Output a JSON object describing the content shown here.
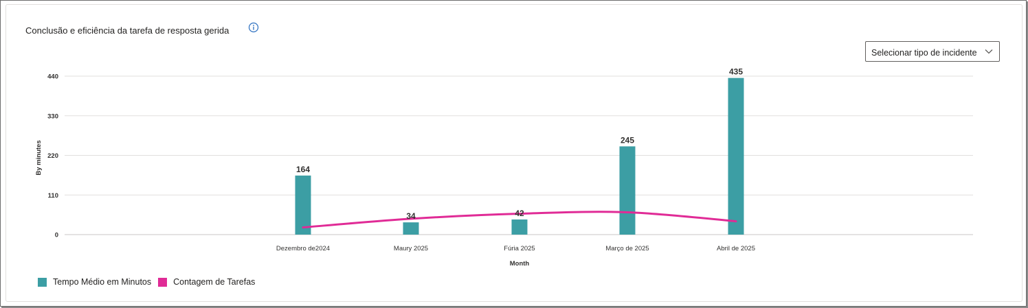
{
  "card": {
    "title": "Conclusão e eficiência da tarefa de resposta gerida",
    "info_icon": "info-icon"
  },
  "filter": {
    "label": "Selecionar tipo de incidente",
    "icon": "chevron-down-icon"
  },
  "chart_data": {
    "type": "bar",
    "categories": [
      "Dezembro de2024",
      "Maury 2025",
      "Fúria 2025",
      "Março de 2025",
      "Abril de 2025"
    ],
    "series": [
      {
        "name": "Tempo Médio em Minutos",
        "type": "bar",
        "color": "#3c9ea4",
        "values": [
          164,
          34,
          42,
          245,
          435
        ],
        "labels": [
          "164",
          "34",
          "42",
          "245",
          "435"
        ]
      },
      {
        "name": "Contagem de Tarefas",
        "type": "line",
        "color": "#e02b96",
        "values": [
          20,
          44,
          58,
          62,
          37
        ]
      }
    ],
    "xlabel": "Month",
    "ylabel": "By minutes",
    "yticks": [
      "0",
      "110",
      "220",
      "330",
      "440"
    ],
    "ylim": [
      0,
      440
    ],
    "grid": true,
    "legend_position": "bottom-left"
  }
}
